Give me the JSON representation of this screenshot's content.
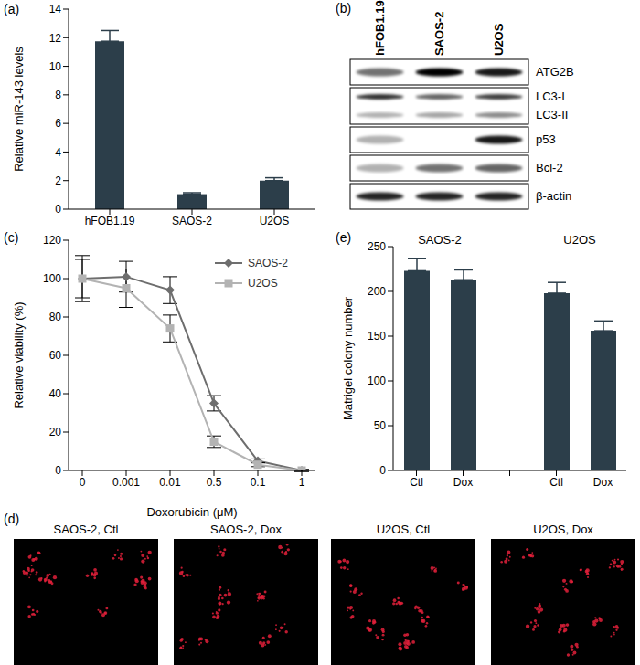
{
  "chart_data": [
    {
      "panel": "(a)",
      "type": "bar",
      "categories": [
        "hFOB1.19",
        "SAOS-2",
        "U2OS"
      ],
      "values": [
        11.75,
        1.05,
        2.0
      ],
      "errors": [
        0.75,
        0.1,
        0.2
      ],
      "color": "#2c3e4a",
      "ylabel": "Relative miR-143 levels",
      "ylim": [
        0,
        14
      ],
      "yticks": [
        0,
        2,
        4,
        6,
        8,
        10,
        12,
        14
      ],
      "grid": false
    },
    {
      "panel": "(c)",
      "type": "line",
      "categories": [
        "0",
        "0.001",
        "0.01",
        "0.5",
        "0.1",
        "1"
      ],
      "xlabel": "Doxorubicin (μM)",
      "ylabel": "Relative viability (%)",
      "ylim": [
        0,
        120
      ],
      "yticks": [
        0,
        20,
        40,
        60,
        80,
        100,
        120
      ],
      "grid": false,
      "legend": "upper right",
      "series": [
        {
          "name": "SAOS-2",
          "color": "#6e6e6e",
          "marker": "diamond",
          "values": [
            100,
            101,
            94,
            35,
            5,
            0
          ],
          "errors": [
            12,
            8,
            7,
            4,
            1,
            0.5
          ]
        },
        {
          "name": "U2OS",
          "color": "#b3b3b3",
          "marker": "square",
          "values": [
            100,
            95,
            74,
            15,
            3,
            0
          ],
          "errors": [
            10,
            10,
            7,
            3,
            1,
            0.5
          ]
        }
      ]
    },
    {
      "panel": "(e)",
      "type": "bar",
      "categories": [
        "Ctl",
        "Dox",
        null,
        "Ctl",
        "Dox"
      ],
      "values": [
        223,
        213,
        null,
        198,
        156
      ],
      "errors": [
        14,
        11,
        null,
        12,
        11
      ],
      "groups": [
        {
          "name": "SAOS-2",
          "categories": [
            0,
            1
          ]
        },
        {
          "name": "U2OS",
          "categories": [
            3,
            4
          ]
        }
      ],
      "color": "#2c3e4a",
      "ylabel": "Matrigel colony number",
      "ylim": [
        0,
        250
      ],
      "yticks": [
        0,
        50,
        100,
        150,
        200,
        250
      ],
      "grid": false
    }
  ],
  "blot": {
    "panel": "(b)",
    "lanes": [
      "hFOB1.19",
      "SAOS-2",
      "U2OS"
    ],
    "boxes": [
      {
        "bands": [
          {
            "label": "ATG2B",
            "intensity": [
              0.55,
              1,
              0.9
            ]
          }
        ]
      },
      {
        "bands": [
          {
            "label": "LC3-I",
            "intensity": [
              0.8,
              0.6,
              0.75
            ]
          },
          {
            "label": "LC3-II",
            "intensity": [
              0.3,
              0.35,
              0.45
            ]
          }
        ]
      },
      {
        "bands": [
          {
            "label": "p53",
            "intensity": [
              0.3,
              0,
              0.9
            ]
          }
        ]
      },
      {
        "bands": [
          {
            "label": "Bcl-2",
            "intensity": [
              0.3,
              0.55,
              0.6
            ]
          }
        ]
      },
      {
        "bands": [
          {
            "label": "β-actin",
            "intensity": [
              0.85,
              0.85,
              0.85
            ]
          }
        ]
      }
    ]
  },
  "micrographs": {
    "panel": "(d)",
    "images": [
      {
        "caption": "SAOS-2, Ctl"
      },
      {
        "caption": "SAOS-2, Dox"
      },
      {
        "caption": "U2OS, Ctl"
      },
      {
        "caption": "U2OS, Dox"
      }
    ]
  }
}
